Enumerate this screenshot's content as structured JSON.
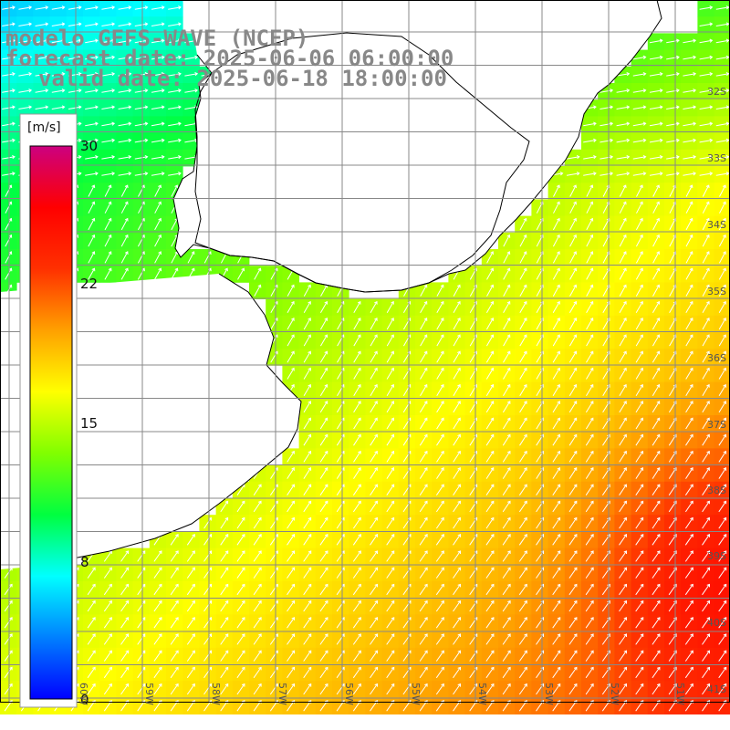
{
  "title": {
    "line1": "modelo GEFS-WAVE (NCEP)",
    "line2": "forecast date: 2025-06-06 06:00:00",
    "line3": "valid date: 2025-06-18 18:00:00"
  },
  "colorbar": {
    "unit": "[m/s]",
    "ticks": [
      "30",
      "22",
      "15",
      "8",
      "0"
    ],
    "tick_values": [
      30,
      22,
      15,
      8,
      0
    ],
    "range": [
      0,
      30
    ],
    "colors": [
      "#0000ff",
      "#0080ff",
      "#00ffff",
      "#00ff40",
      "#80ff00",
      "#ffff00",
      "#ffa000",
      "#ff3000",
      "#ff0000",
      "#cc0080"
    ]
  },
  "grid": {
    "lat_labels": [
      "32S",
      "33S",
      "34S",
      "35S",
      "36S",
      "37S",
      "38S",
      "39S",
      "40S",
      "41S"
    ],
    "lat_values": [
      -32,
      -33,
      -34,
      -35,
      -36,
      -37,
      -38,
      -39,
      -40,
      -41
    ],
    "lon_labels": [
      "60W",
      "59W",
      "58W",
      "57W",
      "56W",
      "55W",
      "54W",
      "53W",
      "52W",
      "51W"
    ],
    "lon_values": [
      -60,
      -59,
      -58,
      -57,
      -56,
      -55,
      -54,
      -53,
      -52,
      -51
    ]
  },
  "map_data": {
    "variable": "wind speed",
    "unit": "m/s",
    "bounds": {
      "lon_min": -61,
      "lon_max": -50.6,
      "lat_min": -41.3,
      "lat_max": -31
    },
    "wind_direction": "northeast",
    "colors": {
      "land": "#ffffff",
      "coastline": "#000000",
      "grid": "#888888",
      "arrows": "#ffffff"
    }
  }
}
